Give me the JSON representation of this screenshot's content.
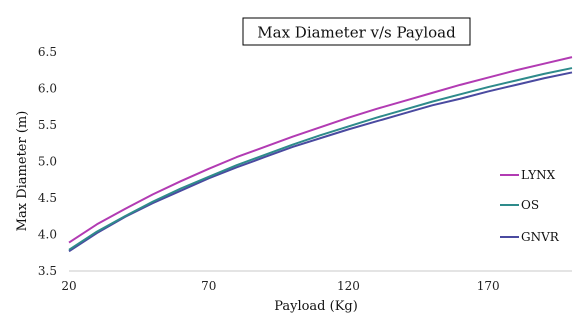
{
  "chart_data": {
    "type": "line",
    "title": "Max Diameter v/s Payload",
    "xlabel": "Payload (Kg)",
    "ylabel": "Max Diameter (m)",
    "xlim": [
      20,
      200
    ],
    "ylim": [
      3.5,
      6.5
    ],
    "x_ticks": [
      "20",
      "70",
      "120",
      "170"
    ],
    "x_tick_values": [
      20,
      70,
      120,
      170
    ],
    "y_ticks": [
      "3.5",
      "4.0",
      "4.5",
      "5.0",
      "5.5",
      "6.0",
      "6.5"
    ],
    "y_tick_values": [
      3.5,
      4.0,
      4.5,
      5.0,
      5.5,
      6.0,
      6.5
    ],
    "grid": false,
    "legend_position": "right",
    "x": [
      20,
      30,
      40,
      50,
      60,
      70,
      80,
      90,
      100,
      110,
      120,
      130,
      140,
      150,
      160,
      170,
      180,
      190,
      200
    ],
    "series": [
      {
        "name": "LYNX",
        "color": "#b23bb3",
        "values": [
          3.89,
          4.14,
          4.35,
          4.55,
          4.73,
          4.9,
          5.06,
          5.2,
          5.34,
          5.47,
          5.6,
          5.72,
          5.83,
          5.94,
          6.05,
          6.15,
          6.25,
          6.34,
          6.43
        ]
      },
      {
        "name": "OS",
        "color": "#2e8b8b",
        "values": [
          3.79,
          4.04,
          4.25,
          4.45,
          4.63,
          4.79,
          4.95,
          5.09,
          5.23,
          5.36,
          5.48,
          5.6,
          5.71,
          5.82,
          5.92,
          6.02,
          6.11,
          6.2,
          6.28
        ]
      },
      {
        "name": "GNVR",
        "color": "#4a4aa0",
        "values": [
          3.77,
          4.02,
          4.24,
          4.43,
          4.6,
          4.77,
          4.92,
          5.06,
          5.2,
          5.32,
          5.44,
          5.55,
          5.66,
          5.77,
          5.86,
          5.96,
          6.05,
          6.14,
          6.22
        ]
      }
    ]
  }
}
